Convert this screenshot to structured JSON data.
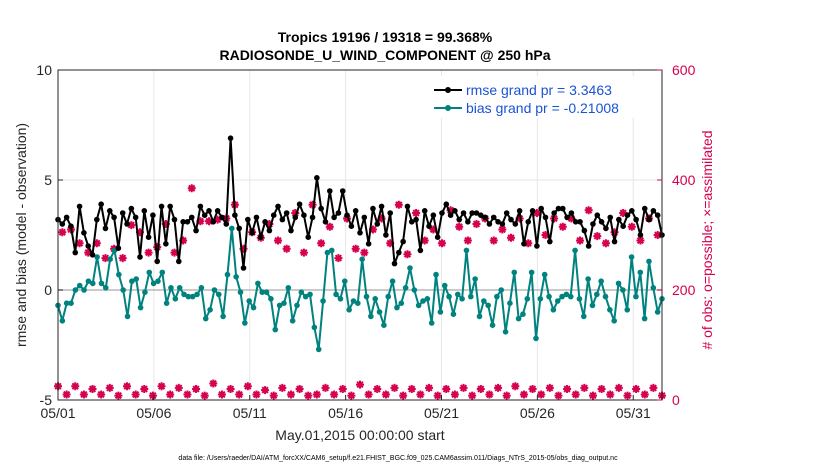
{
  "chart_data": {
    "type": "line",
    "title": "Tropics 19196 / 19318 = 99.368%",
    "subtitle": "RADIOSONDE_U_WIND_COMPONENT @ 250 hPa",
    "xlabel": "May.01,2015 00:00:00 start",
    "ylabel": "rmse and bias (model - observation)",
    "ylabel_right": "# of obs: o=possible; ×=assimilated",
    "xlim": [
      0,
      31.5
    ],
    "ylim": [
      -5,
      10
    ],
    "ylim_right": [
      0,
      600
    ],
    "x_ticks": [
      0,
      5,
      10,
      15,
      20,
      25,
      30
    ],
    "x_tick_labels": [
      "05/01",
      "05/06",
      "05/11",
      "05/16",
      "05/21",
      "05/26",
      "05/31"
    ],
    "y_ticks": [
      -5,
      0,
      5,
      10
    ],
    "y_tick_labels": [
      "-5",
      "0",
      "5",
      "10"
    ],
    "y_ticks_right": [
      0,
      200,
      400,
      600
    ],
    "y_tick_labels_right": [
      "0",
      "200",
      "400",
      "600"
    ],
    "legend_position": "top-right",
    "zero_line": 0,
    "series": [
      {
        "name": "rmse grand pr = 3.3463",
        "color": "#000000",
        "marker": "dot",
        "values": [
          3.2,
          3.0,
          3.3,
          2.9,
          1.7,
          3.8,
          2.6,
          2.0,
          1.6,
          3.2,
          3.9,
          2.8,
          3.6,
          3.3,
          1.9,
          3.5,
          3.0,
          3.7,
          3.3,
          1.5,
          3.6,
          2.4,
          3.4,
          1.3,
          3.8,
          2.1,
          3.8,
          3.2,
          1.3,
          3.1,
          3.1,
          3.3,
          2.7,
          3.8,
          3.4,
          3.6,
          3.1,
          3.6,
          3.3,
          3.0,
          6.9,
          3.4,
          2.8,
          1.0,
          3.2,
          2.6,
          3.3,
          2.4,
          3.1,
          2.7,
          3.4,
          3.8,
          3.2,
          3.5,
          2.7,
          3.3,
          3.9,
          3.4,
          2.4,
          3.3,
          5.1,
          3.7,
          3.1,
          4.5,
          3.3,
          3.5,
          4.5,
          3.4,
          2.9,
          3.6,
          2.6,
          3.3,
          2.1,
          3.7,
          3.0,
          3.8,
          2.5,
          3.5,
          1.2,
          1.7,
          2.2,
          3.8,
          3.1,
          3.2,
          1.8,
          3.6,
          2.9,
          3.4,
          2.4,
          3.5,
          3.9,
          3.4,
          3.6,
          3.2,
          3.5,
          3.1,
          3.5,
          3.5,
          3.4,
          3.3,
          3.0,
          3.3,
          3.1,
          3.0,
          3.5,
          3.2,
          3.0,
          3.6,
          2.1,
          3.1,
          3.6,
          2.0,
          3.7,
          3.3,
          2.2,
          3.5,
          3.7,
          3.7,
          3.3,
          3.5,
          3.1,
          3.1,
          2.7,
          2.0,
          3.0,
          3.4,
          3.1,
          2.8,
          3.3,
          2.2,
          3.2,
          2.9,
          3.4,
          3.6,
          3.2,
          2.5,
          3.7,
          3.2,
          3.6,
          3.4,
          2.5
        ]
      },
      {
        "name": "bias grand pr = -0.21008",
        "color": "#00827f",
        "marker": "dot",
        "values": [
          -0.7,
          -1.4,
          -0.6,
          -0.6,
          0.0,
          0.2,
          0.0,
          0.4,
          0.3,
          1.5,
          0.3,
          0.1,
          1.4,
          1.8,
          0.7,
          0.0,
          -1.2,
          0.4,
          0.5,
          -0.8,
          -0.1,
          0.8,
          0.3,
          0.4,
          0.8,
          -0.6,
          0.1,
          -0.4,
          0.1,
          -0.2,
          -0.3,
          -0.3,
          -0.2,
          0.1,
          -1.3,
          -0.9,
          0.0,
          -0.2,
          -1.2,
          0.7,
          2.8,
          0.6,
          -0.1,
          -1.5,
          -0.5,
          -0.8,
          0.3,
          -0.1,
          -0.1,
          -0.4,
          -1.8,
          -0.7,
          -0.6,
          0.1,
          -1.4,
          -0.7,
          -0.1,
          -0.3,
          -0.2,
          -1.7,
          -2.7,
          -0.5,
          1.7,
          1.8,
          -0.2,
          -0.4,
          0.4,
          -0.9,
          -0.5,
          -0.6,
          1.4,
          -0.3,
          -1.2,
          -0.4,
          -1.0,
          -1.6,
          -0.3,
          0.4,
          -0.8,
          -0.6,
          0.1,
          1.0,
          0.0,
          -0.7,
          -0.5,
          -0.4,
          -1.5,
          0.7,
          -1.0,
          0.2,
          -0.3,
          -1.1,
          -0.2,
          -0.4,
          1.8,
          -0.3,
          0.5,
          -1.2,
          -0.5,
          -0.7,
          -1.6,
          -0.3,
          0.0,
          -1.9,
          -0.6,
          0.8,
          -1.3,
          -1.1,
          -0.4,
          0.8,
          -2.2,
          -0.4,
          0.7,
          -0.3,
          -0.9,
          -0.5,
          -0.3,
          -0.2,
          -0.3,
          1.8,
          -0.4,
          -1.2,
          0.5,
          -0.7,
          -0.2,
          0.4,
          -0.3,
          -0.9,
          -1.4,
          0.3,
          0.0,
          -0.9,
          1.5,
          -0.3,
          0.8,
          -1.3,
          1.3,
          0.1,
          -1.0,
          -0.4
        ]
      },
      {
        "name": "# of obs possible / assimilated",
        "color": "#d6004f",
        "marker": "asterisk",
        "axis": "right",
        "values": [
          25,
          305,
          10,
          310,
          25,
          285,
          10,
          268,
          20,
          285,
          10,
          258,
          22,
          275,
          8,
          258,
          25,
          318,
          10,
          305,
          20,
          268,
          8,
          278,
          25,
          320,
          10,
          268,
          22,
          290,
          10,
          385,
          20,
          325,
          8,
          325,
          30,
          328,
          10,
          330,
          20,
          355,
          10,
          275,
          25,
          305,
          10,
          295,
          18,
          320,
          8,
          290,
          22,
          275,
          10,
          340,
          20,
          268,
          8,
          355,
          10,
          285,
          22,
          315,
          10,
          258,
          20,
          330,
          8,
          275,
          28,
          268,
          10,
          310,
          20,
          330,
          10,
          285,
          22,
          355,
          8,
          265,
          20,
          340,
          10,
          290,
          22,
          310,
          8,
          285,
          20,
          345,
          10,
          315,
          22,
          290,
          8,
          320,
          20,
          330,
          10,
          290,
          22,
          310,
          8,
          295,
          25,
          330,
          10,
          285,
          20,
          340,
          10,
          300,
          22,
          330,
          8,
          315,
          20,
          330,
          10,
          290,
          22,
          345,
          8,
          298,
          20,
          285,
          10,
          305,
          22,
          340,
          8,
          315,
          20,
          290,
          10,
          330,
          22,
          300,
          8
        ]
      }
    ]
  },
  "footnote": "data file: /Users/raeder/DAI/ATM_forcXX/CAM6_setup/f.e21.FHIST_BGC.f09_025.CAM6assim.011/Diags_NTrS_2015-05/obs_diag_output.nc"
}
